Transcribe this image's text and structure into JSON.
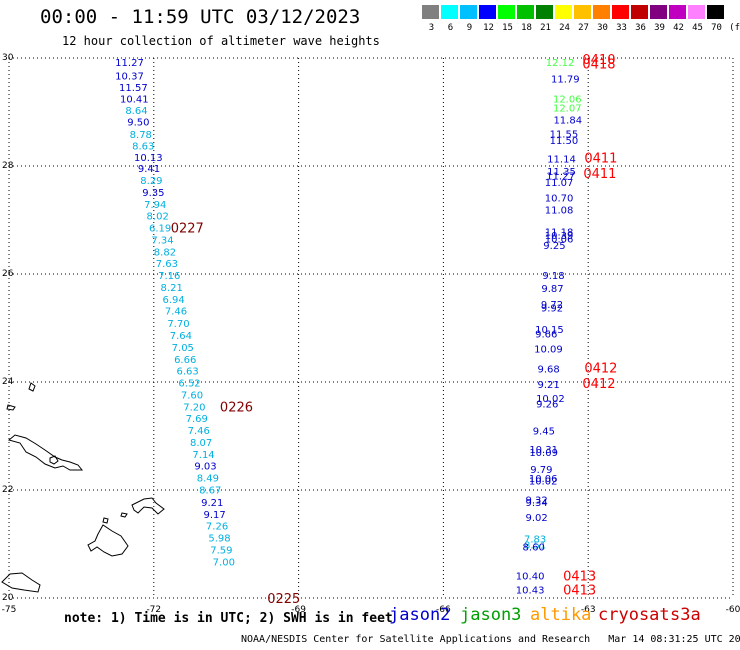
{
  "title": "00:00 - 11:59 UTC 03/12/2023",
  "subtitle": "12 hour collection of altimeter wave heights",
  "legend": {
    "bins": [
      "3",
      "6",
      "9",
      "12",
      "15",
      "18",
      "21",
      "24",
      "27",
      "30",
      "33",
      "36",
      "39",
      "42",
      "45",
      "70"
    ],
    "colors": [
      "#808080",
      "#00ffff",
      "#00c0ff",
      "#0000ff",
      "#00ff00",
      "#00c000",
      "#008000",
      "#ffff00",
      "#ffc000",
      "#ff8000",
      "#ff0000",
      "#c00000",
      "#800080",
      "#c000c0",
      "#ff80ff",
      "#000000"
    ],
    "unit": "(ft)"
  },
  "footnote": "note: 1) Time is in UTC; 2) SWH is in feet",
  "satellites": [
    {
      "name": "jason2",
      "color": "#0000cc"
    },
    {
      "name": "jason3",
      "color": "#00a000"
    },
    {
      "name": "altika",
      "color": "#ff9900"
    },
    {
      "name": "cryosat",
      "color": "#cc0000"
    },
    {
      "name": "s3a",
      "color": "#cc0000"
    }
  ],
  "credit": "NOAA/NESDIS Center for Satellite Applications and Research   Mar 14 08:31:25 UTC 2023",
  "map": {
    "lon_range": [
      -75,
      -60
    ],
    "lat_range": [
      20,
      30
    ],
    "lon_ticks": [
      "-75",
      "-72",
      "-69",
      "-66",
      "-63",
      "-60"
    ],
    "lat_ticks": [
      "30",
      "28",
      "26",
      "24",
      "22",
      "20"
    ]
  },
  "chart_data": {
    "type": "scatter",
    "x_axis": "longitude",
    "y_axis": "latitude",
    "series": [
      {
        "track": "west",
        "points": [
          {
            "lon": -72.8,
            "lat": 29.93,
            "v": "11.27",
            "color": "#0000cc"
          },
          {
            "lon": -72.8,
            "lat": 29.68,
            "v": "10.37",
            "color": "#0000cc"
          },
          {
            "lon": -72.72,
            "lat": 29.46,
            "v": "11.57",
            "color": "#0000cc"
          },
          {
            "lon": -72.7,
            "lat": 29.25,
            "v": "10.41",
            "color": "#0000cc"
          },
          {
            "lon": -72.59,
            "lat": 29.04,
            "v": "8.64",
            "color": "#00b0e0"
          },
          {
            "lon": -72.55,
            "lat": 28.82,
            "v": "9.50",
            "color": "#0000cc"
          },
          {
            "lon": -72.5,
            "lat": 28.59,
            "v": "8.78",
            "color": "#00b0e0"
          },
          {
            "lon": -72.45,
            "lat": 28.38,
            "v": "8.63",
            "color": "#00b0e0"
          },
          {
            "lon": -72.41,
            "lat": 28.17,
            "v": "10.13",
            "color": "#0000cc"
          },
          {
            "lon": -72.33,
            "lat": 27.96,
            "v": "9.41",
            "color": "#0000cc"
          },
          {
            "lon": -72.28,
            "lat": 27.74,
            "v": "8.29",
            "color": "#00b0e0"
          },
          {
            "lon": -72.24,
            "lat": 27.52,
            "v": "9.35",
            "color": "#0000cc"
          },
          {
            "lon": -72.2,
            "lat": 27.3,
            "v": "7.94",
            "color": "#00b0e0"
          },
          {
            "lon": -72.15,
            "lat": 27.08,
            "v": "8.02",
            "color": "#00b0e0"
          },
          {
            "lon": -72.1,
            "lat": 26.86,
            "v": "6.19",
            "color": "#00b0e0"
          },
          {
            "lon": -72.05,
            "lat": 26.64,
            "v": "7.34",
            "color": "#00b0e0"
          },
          {
            "lon": -72.0,
            "lat": 26.42,
            "v": "8.82",
            "color": "#00b0e0"
          },
          {
            "lon": -71.96,
            "lat": 26.2,
            "v": "7.63",
            "color": "#00b0e0"
          },
          {
            "lon": -71.91,
            "lat": 25.98,
            "v": "7.16",
            "color": "#00b0e0"
          },
          {
            "lon": -71.86,
            "lat": 25.76,
            "v": "8.21",
            "color": "#00b0e0"
          },
          {
            "lon": -71.82,
            "lat": 25.54,
            "v": "6.94",
            "color": "#00b0e0"
          },
          {
            "lon": -71.77,
            "lat": 25.32,
            "v": "7.46",
            "color": "#00b0e0"
          },
          {
            "lon": -71.72,
            "lat": 25.09,
            "v": "7.70",
            "color": "#00b0e0"
          },
          {
            "lon": -71.67,
            "lat": 24.87,
            "v": "7.64",
            "color": "#00b0e0"
          },
          {
            "lon": -71.63,
            "lat": 24.65,
            "v": "7.05",
            "color": "#00b0e0"
          },
          {
            "lon": -71.58,
            "lat": 24.43,
            "v": "6.66",
            "color": "#00b0e0"
          },
          {
            "lon": -71.53,
            "lat": 24.21,
            "v": "6.63",
            "color": "#00b0e0"
          },
          {
            "lon": -71.49,
            "lat": 23.99,
            "v": "6.52",
            "color": "#00b0e0"
          },
          {
            "lon": -71.44,
            "lat": 23.77,
            "v": "7.60",
            "color": "#00b0e0"
          },
          {
            "lon": -71.39,
            "lat": 23.55,
            "v": "7.20",
            "color": "#00b0e0"
          },
          {
            "lon": -71.34,
            "lat": 23.33,
            "v": "7.69",
            "color": "#00b0e0"
          },
          {
            "lon": -71.3,
            "lat": 23.11,
            "v": "7.46",
            "color": "#00b0e0"
          },
          {
            "lon": -71.25,
            "lat": 22.89,
            "v": "8.07",
            "color": "#00b0e0"
          },
          {
            "lon": -71.2,
            "lat": 22.67,
            "v": "7.14",
            "color": "#00b0e0"
          },
          {
            "lon": -71.16,
            "lat": 22.45,
            "v": "9.03",
            "color": "#0000cc"
          },
          {
            "lon": -71.11,
            "lat": 22.23,
            "v": "8.49",
            "color": "#00b0e0"
          },
          {
            "lon": -71.06,
            "lat": 22.01,
            "v": "8.67",
            "color": "#00b0e0"
          },
          {
            "lon": -71.02,
            "lat": 21.78,
            "v": "9.21",
            "color": "#0000cc"
          },
          {
            "lon": -70.97,
            "lat": 21.56,
            "v": "9.17",
            "color": "#0000cc"
          },
          {
            "lon": -70.92,
            "lat": 21.34,
            "v": "7.26",
            "color": "#00b0e0"
          },
          {
            "lon": -70.87,
            "lat": 21.12,
            "v": "5.98",
            "color": "#00b0e0"
          },
          {
            "lon": -70.83,
            "lat": 20.9,
            "v": "7.59",
            "color": "#00b0e0"
          },
          {
            "lon": -70.78,
            "lat": 20.68,
            "v": "7.00",
            "color": "#00b0e0"
          }
        ]
      },
      {
        "track": "east",
        "points": [
          {
            "lon": -63.88,
            "lat": 29.93,
            "v": "12.12",
            "color": "#44ff44"
          },
          {
            "lon": -63.77,
            "lat": 29.62,
            "v": "11.79",
            "color": "#0000cc"
          },
          {
            "lon": -63.73,
            "lat": 29.25,
            "v": "12.06",
            "color": "#44ff44"
          },
          {
            "lon": -63.73,
            "lat": 29.08,
            "v": "12.07",
            "color": "#44ff44"
          },
          {
            "lon": -63.72,
            "lat": 28.86,
            "v": "11.84",
            "color": "#0000cc"
          },
          {
            "lon": -63.8,
            "lat": 28.6,
            "v": "11.55",
            "color": "#0000cc"
          },
          {
            "lon": -63.8,
            "lat": 28.48,
            "v": "11.50",
            "color": "#0000cc"
          },
          {
            "lon": -63.85,
            "lat": 28.14,
            "v": "11.14",
            "color": "#0000cc"
          },
          {
            "lon": -63.85,
            "lat": 27.91,
            "v": "11.35",
            "color": "#0000cc"
          },
          {
            "lon": -63.87,
            "lat": 27.82,
            "v": "11.27",
            "color": "#0000cc"
          },
          {
            "lon": -63.9,
            "lat": 27.7,
            "v": "11.07",
            "color": "#0000cc"
          },
          {
            "lon": -63.9,
            "lat": 27.42,
            "v": "10.70",
            "color": "#0000cc"
          },
          {
            "lon": -63.9,
            "lat": 27.19,
            "v": "11.08",
            "color": "#0000cc"
          },
          {
            "lon": -63.9,
            "lat": 26.79,
            "v": "11.18",
            "color": "#0000cc"
          },
          {
            "lon": -63.9,
            "lat": 26.72,
            "v": "10.39",
            "color": "#0000cc"
          },
          {
            "lon": -63.9,
            "lat": 26.66,
            "v": "10.06",
            "color": "#0000cc"
          },
          {
            "lon": -63.93,
            "lat": 26.54,
            "v": "9.25",
            "color": "#0000cc"
          },
          {
            "lon": -63.95,
            "lat": 25.98,
            "v": "9.18",
            "color": "#0000cc"
          },
          {
            "lon": -63.97,
            "lat": 25.74,
            "v": "9.87",
            "color": "#0000cc"
          },
          {
            "lon": -63.98,
            "lat": 25.44,
            "v": "9.72",
            "color": "#0000cc"
          },
          {
            "lon": -63.98,
            "lat": 25.38,
            "v": "9.92",
            "color": "#0000cc"
          },
          {
            "lon": -64.1,
            "lat": 24.98,
            "v": "10.15",
            "color": "#0000cc"
          },
          {
            "lon": -64.1,
            "lat": 24.9,
            "v": "9.66",
            "color": "#0000cc"
          },
          {
            "lon": -64.12,
            "lat": 24.62,
            "v": "10.09",
            "color": "#0000cc"
          },
          {
            "lon": -64.05,
            "lat": 24.25,
            "v": "9.68",
            "color": "#0000cc"
          },
          {
            "lon": -64.05,
            "lat": 23.96,
            "v": "9.21",
            "color": "#0000cc"
          },
          {
            "lon": -64.08,
            "lat": 23.7,
            "v": "10.02",
            "color": "#0000cc"
          },
          {
            "lon": -64.08,
            "lat": 23.6,
            "v": "9.26",
            "color": "#0000cc"
          },
          {
            "lon": -64.15,
            "lat": 23.1,
            "v": "9.45",
            "color": "#0000cc"
          },
          {
            "lon": -64.22,
            "lat": 22.76,
            "v": "10.31",
            "color": "#0000cc"
          },
          {
            "lon": -64.22,
            "lat": 22.7,
            "v": "10.09",
            "color": "#0000cc"
          },
          {
            "lon": -64.2,
            "lat": 22.39,
            "v": "9.79",
            "color": "#0000cc"
          },
          {
            "lon": -64.23,
            "lat": 22.22,
            "v": "10.06",
            "color": "#0000cc"
          },
          {
            "lon": -64.23,
            "lat": 22.18,
            "v": "10.02",
            "color": "#0000cc"
          },
          {
            "lon": -64.3,
            "lat": 21.82,
            "v": "9.32",
            "color": "#0000cc"
          },
          {
            "lon": -64.3,
            "lat": 21.78,
            "v": "9.34",
            "color": "#0000cc"
          },
          {
            "lon": -64.3,
            "lat": 21.5,
            "v": "9.02",
            "color": "#0000cc"
          },
          {
            "lon": -64.33,
            "lat": 21.1,
            "v": "7.83",
            "color": "#00b0e0"
          },
          {
            "lon": -64.33,
            "lat": 20.99,
            "v": "8.51",
            "color": "#00b0e0"
          },
          {
            "lon": -64.36,
            "lat": 20.95,
            "v": "8.60",
            "color": "#0000cc"
          },
          {
            "lon": -64.5,
            "lat": 20.42,
            "v": "10.40",
            "color": "#0000cc"
          },
          {
            "lon": -64.5,
            "lat": 20.16,
            "v": "10.43",
            "color": "#0000cc"
          }
        ]
      }
    ],
    "time_labels": [
      {
        "lon": -71.65,
        "lat": 26.86,
        "text": "0227",
        "color": "#800000"
      },
      {
        "lon": -70.63,
        "lat": 23.55,
        "text": "0226",
        "color": "#800000"
      },
      {
        "lon": -69.65,
        "lat": 20.0,
        "text": "0225",
        "color": "#800000"
      },
      {
        "lon": -63.12,
        "lat": 29.98,
        "text": "0410",
        "color": "#ff0000"
      },
      {
        "lon": -63.12,
        "lat": 29.9,
        "text": "0418",
        "color": "#ff0000"
      },
      {
        "lon": -63.08,
        "lat": 28.16,
        "text": "0411",
        "color": "#ff0000"
      },
      {
        "lon": -63.1,
        "lat": 27.87,
        "text": "0411",
        "color": "#ff0000"
      },
      {
        "lon": -63.08,
        "lat": 24.27,
        "text": "0412",
        "color": "#ff0000"
      },
      {
        "lon": -63.12,
        "lat": 23.98,
        "text": "0412",
        "color": "#ff0000"
      },
      {
        "lon": -63.52,
        "lat": 20.42,
        "text": "0413",
        "color": "#ff0000"
      },
      {
        "lon": -63.52,
        "lat": 20.16,
        "text": "0413",
        "color": "#ff0000"
      }
    ]
  }
}
